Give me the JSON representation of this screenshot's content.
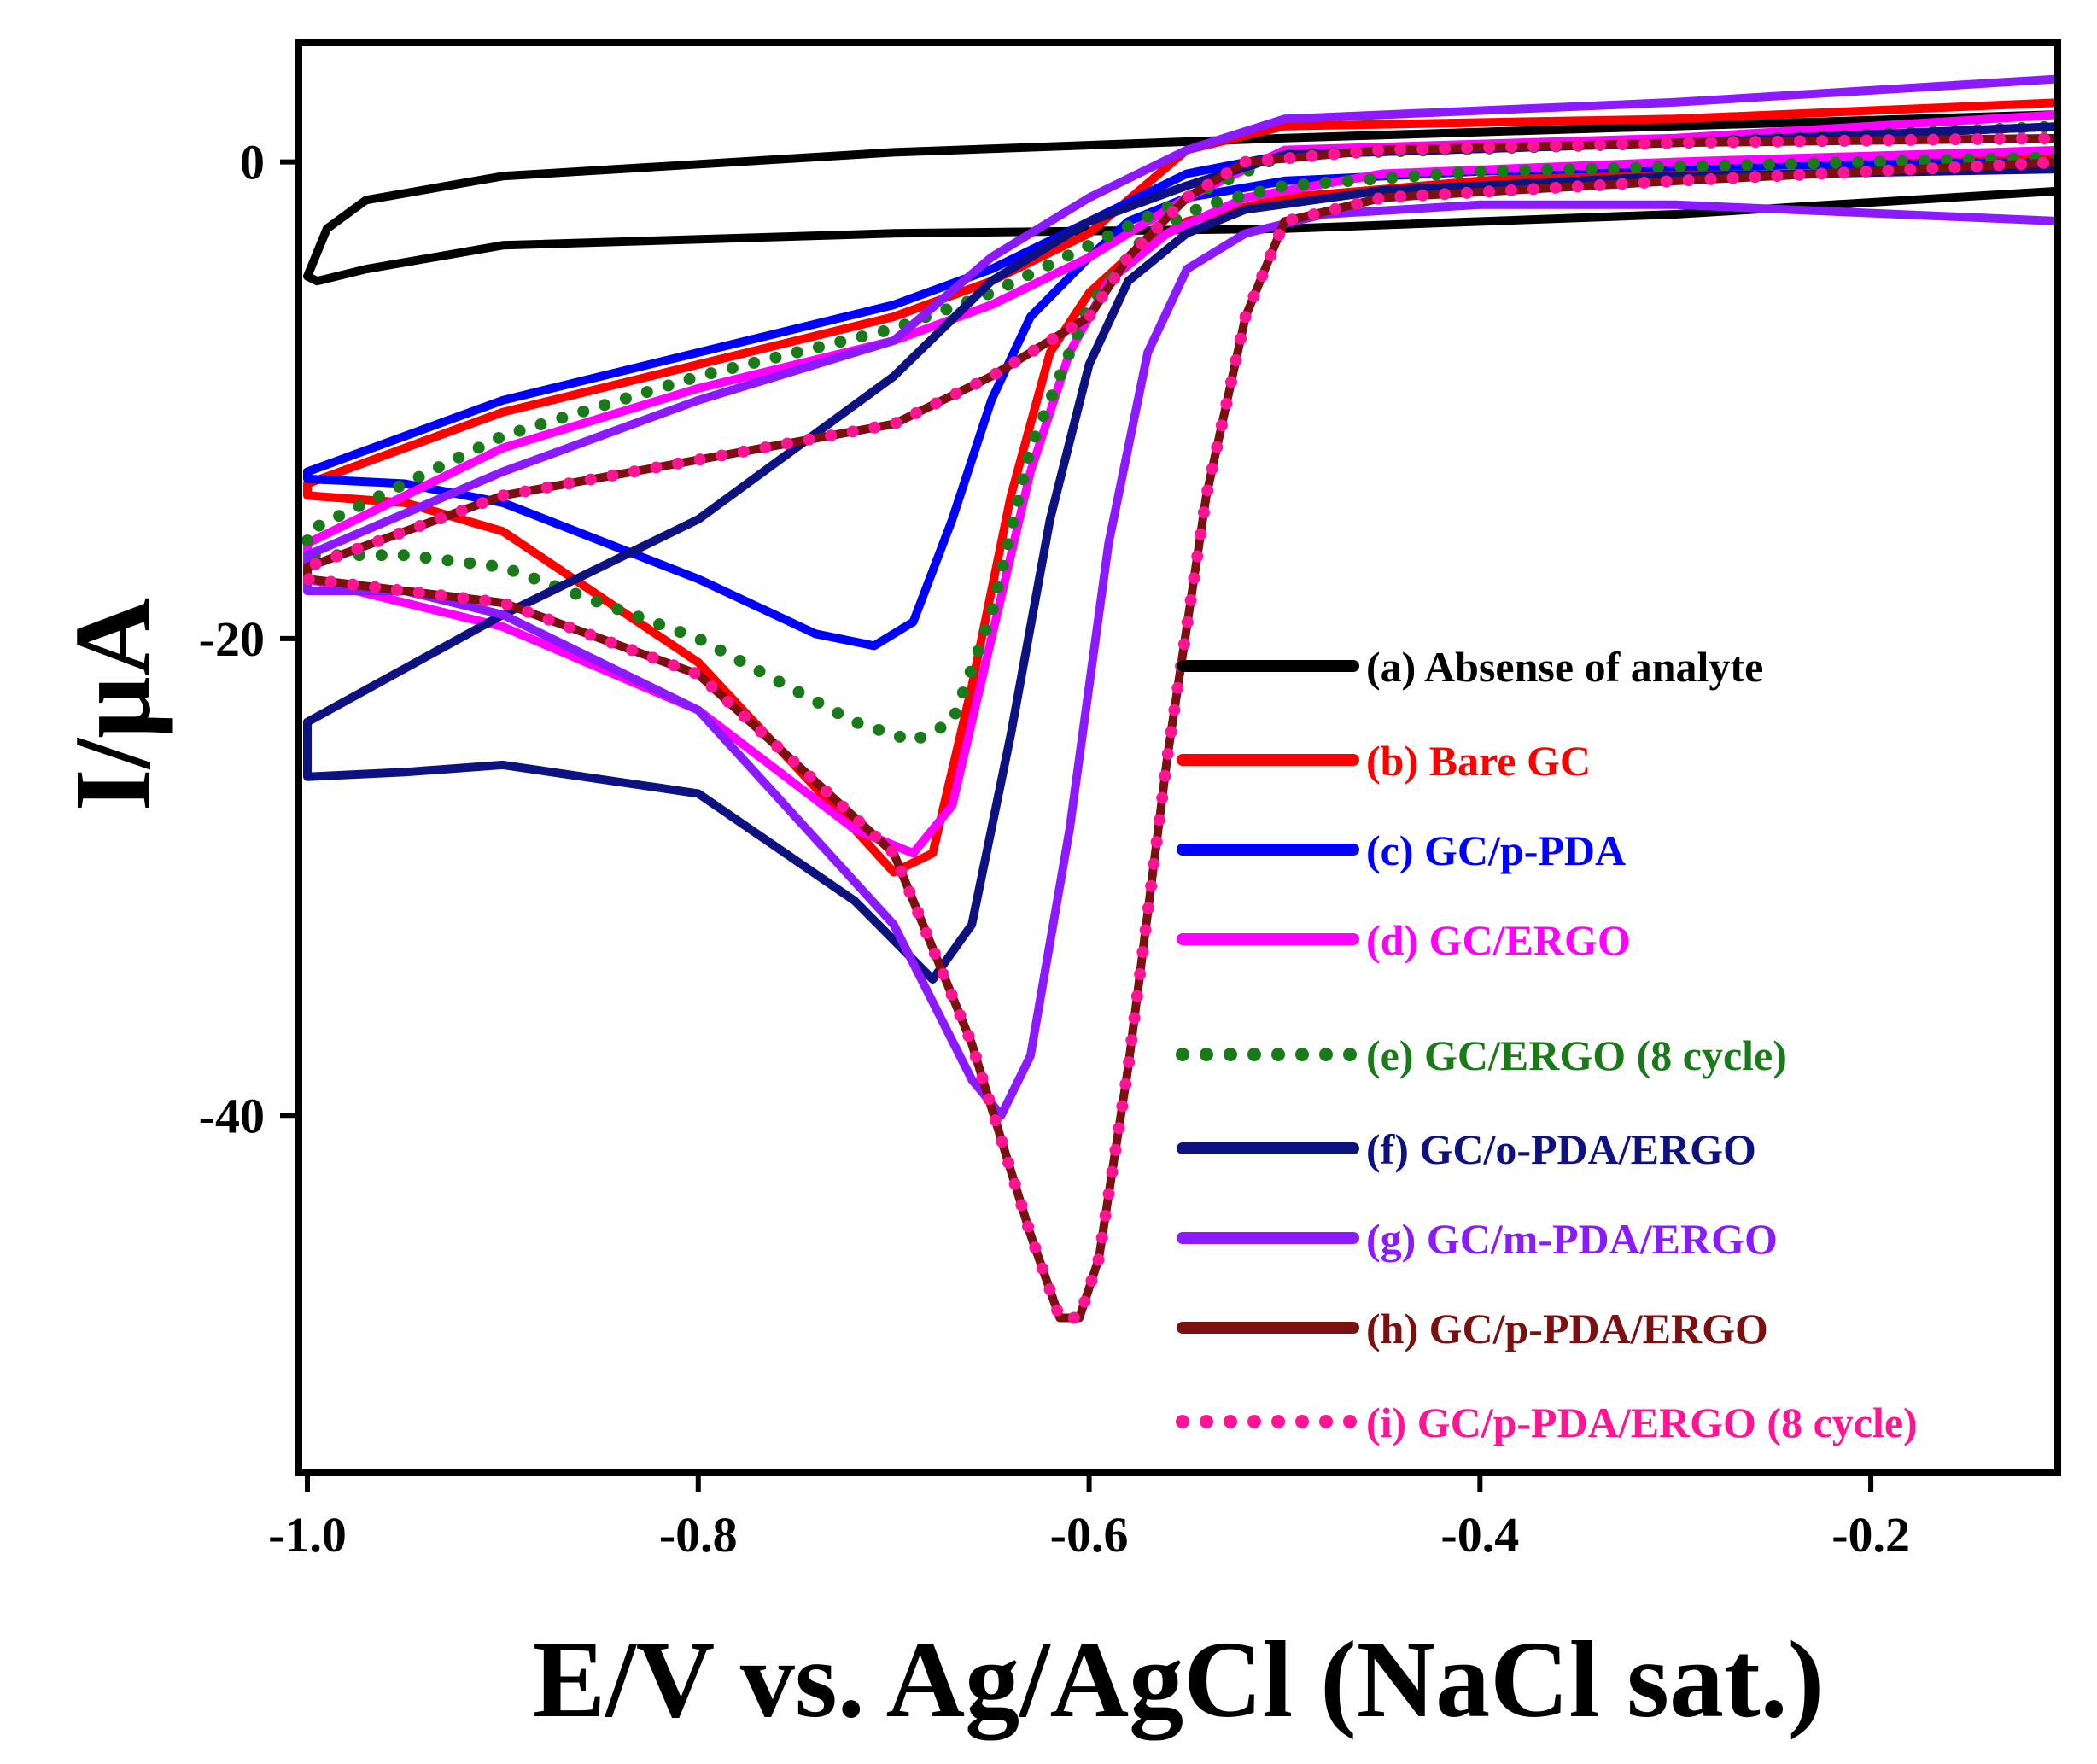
{
  "chart_data": {
    "type": "line",
    "title": "",
    "xlabel": "E/V vs. Ag/AgCl (NaCl sat.)",
    "ylabel": "I/μA",
    "xlim": [
      -1.0,
      -0.1
    ],
    "ylim": [
      -55,
      5
    ],
    "xticks": [
      -1.0,
      -0.8,
      -0.6,
      -0.4,
      -0.2
    ],
    "xtick_labels": [
      "-1.0",
      "-0.8",
      "-0.6",
      "-0.4",
      "-0.2"
    ],
    "yticks": [
      0,
      -20,
      -40
    ],
    "ytick_labels": [
      "0",
      "-20",
      "-40"
    ],
    "grid": false,
    "legend_position": "lower-right",
    "series": [
      {
        "name": "(a) Absense of analyte",
        "color": "#000000",
        "dash": "solid",
        "x": [
          -0.1,
          -0.3,
          -0.5,
          -0.7,
          -0.9,
          -0.97,
          -0.99,
          -1.0,
          -0.995,
          -0.97,
          -0.9,
          -0.7,
          -0.5,
          -0.3,
          -0.1
        ],
        "y": [
          2.0,
          1.5,
          1.0,
          0.4,
          -0.6,
          -1.6,
          -2.8,
          -4.8,
          -5.0,
          -4.5,
          -3.5,
          -3.0,
          -2.8,
          -2.2,
          -1.2
        ]
      },
      {
        "name": "(b) Bare GC",
        "color": "#ff0000",
        "dash": "solid",
        "x": [
          -0.1,
          -0.3,
          -0.5,
          -0.55,
          -0.6,
          -0.65,
          -0.7,
          -0.8,
          -0.9,
          -1.0,
          -1.0,
          -0.95,
          -0.9,
          -0.8,
          -0.72,
          -0.7,
          -0.68,
          -0.66,
          -0.64,
          -0.62,
          -0.6,
          -0.58,
          -0.55,
          -0.5,
          -0.4,
          -0.3,
          -0.1
        ],
        "y": [
          2.5,
          1.8,
          1.5,
          0.5,
          -3.0,
          -5.0,
          -6.5,
          -8.5,
          -10.5,
          -13.5,
          -14.0,
          -14.3,
          -15.5,
          -21.0,
          -28.0,
          -29.8,
          -29.0,
          -22.0,
          -14.0,
          -8.0,
          -5.5,
          -4.0,
          -2.5,
          -1.5,
          -0.8,
          -0.3,
          0.3
        ]
      },
      {
        "name": "(c) GC/p-PDA",
        "color": "#0000ff",
        "dash": "solid",
        "x": [
          -0.1,
          -0.3,
          -0.5,
          -0.55,
          -0.6,
          -0.65,
          -0.7,
          -0.8,
          -0.9,
          -1.0,
          -1.0,
          -0.95,
          -0.9,
          -0.8,
          -0.74,
          -0.71,
          -0.69,
          -0.67,
          -0.65,
          -0.63,
          -0.6,
          -0.58,
          -0.55,
          -0.5,
          -0.4,
          -0.3,
          -0.1
        ],
        "y": [
          1.5,
          0.8,
          0.3,
          -0.5,
          -2.5,
          -4.5,
          -6.0,
          -8.0,
          -10.0,
          -13.0,
          -13.3,
          -13.5,
          -14.3,
          -17.5,
          -19.8,
          -20.3,
          -19.3,
          -15.0,
          -10.0,
          -6.5,
          -4.0,
          -2.5,
          -1.5,
          -0.8,
          -0.4,
          -0.2,
          0.0
        ]
      },
      {
        "name": "(d) GC/ERGO",
        "color": "#ff00ff",
        "dash": "solid",
        "x": [
          -0.1,
          -0.3,
          -0.5,
          -0.55,
          -0.6,
          -0.65,
          -0.7,
          -0.8,
          -0.9,
          -1.0,
          -1.0,
          -0.95,
          -0.9,
          -0.8,
          -0.72,
          -0.69,
          -0.67,
          -0.65,
          -0.63,
          -0.61,
          -0.59,
          -0.56,
          -0.52,
          -0.45,
          -0.3,
          -0.1
        ],
        "y": [
          2.0,
          1.0,
          0.5,
          -1.5,
          -4.0,
          -6.0,
          -7.5,
          -9.5,
          -12.0,
          -16.0,
          -17.5,
          -18.5,
          -19.5,
          -23.0,
          -28.0,
          -29.0,
          -27.0,
          -20.0,
          -13.0,
          -8.0,
          -5.0,
          -3.0,
          -1.5,
          -0.5,
          0.0,
          0.5
        ]
      },
      {
        "name": "(e) GC/ERGO (8 cycle)",
        "color": "#1a7a1a",
        "dash": "dotted",
        "x": [
          -0.1,
          -0.3,
          -0.5,
          -0.55,
          -0.6,
          -0.65,
          -0.7,
          -0.8,
          -0.9,
          -1.0,
          -1.0,
          -0.95,
          -0.9,
          -0.8,
          -0.72,
          -0.69,
          -0.67,
          -0.65,
          -0.63,
          -0.6,
          -0.57,
          -0.54,
          -0.5,
          -0.4,
          -0.3,
          -0.1
        ],
        "y": [
          1.5,
          0.8,
          0.3,
          -1.5,
          -3.5,
          -5.5,
          -7.0,
          -9.0,
          -11.5,
          -15.5,
          -16.5,
          -16.5,
          -17.0,
          -20.0,
          -23.5,
          -24.3,
          -23.5,
          -19.0,
          -12.0,
          -6.0,
          -3.0,
          -1.8,
          -1.0,
          -0.4,
          -0.2,
          0.2
        ]
      },
      {
        "name": "(f) GC/o-PDA/ERGO",
        "color": "#0d1280",
        "dash": "solid",
        "x": [
          -0.1,
          -0.3,
          -0.5,
          -0.55,
          -0.6,
          -0.65,
          -0.7,
          -0.8,
          -0.9,
          -1.0,
          -1.0,
          -0.95,
          -0.9,
          -0.8,
          -0.72,
          -0.68,
          -0.66,
          -0.64,
          -0.62,
          -0.6,
          -0.58,
          -0.55,
          -0.52,
          -0.45,
          -0.3,
          -0.1
        ],
        "y": [
          1.5,
          0.8,
          0.3,
          -1.0,
          -2.5,
          -5.0,
          -9.0,
          -15.0,
          -19.0,
          -23.5,
          -25.8,
          -25.6,
          -25.3,
          -26.5,
          -31.0,
          -34.3,
          -32.0,
          -24.0,
          -15.0,
          -8.5,
          -5.0,
          -3.0,
          -2.0,
          -1.2,
          -0.6,
          -0.3
        ]
      },
      {
        "name": "(g) GC/m-PDA/ERGO",
        "color": "#8b1aff",
        "dash": "solid",
        "x": [
          -0.1,
          -0.3,
          -0.5,
          -0.55,
          -0.6,
          -0.65,
          -0.7,
          -0.8,
          -0.9,
          -1.0,
          -1.0,
          -0.95,
          -0.9,
          -0.8,
          -0.7,
          -0.66,
          -0.645,
          -0.63,
          -0.61,
          -0.59,
          -0.57,
          -0.55,
          -0.52,
          -0.48,
          -0.4,
          -0.3,
          -0.1
        ],
        "y": [
          3.5,
          2.5,
          1.8,
          0.5,
          -1.5,
          -4.0,
          -7.5,
          -10.0,
          -13.0,
          -16.5,
          -18.0,
          -18.0,
          -19.0,
          -23.0,
          -32.0,
          -38.5,
          -40.0,
          -37.5,
          -28.0,
          -16.0,
          -8.0,
          -4.5,
          -3.0,
          -2.2,
          -1.8,
          -1.8,
          -2.5
        ]
      },
      {
        "name": "(h) GC/p-PDA/ERGO",
        "color": "#7a1010",
        "dash": "solid",
        "x": [
          -0.1,
          -0.3,
          -0.45,
          -0.52,
          -0.55,
          -0.58,
          -0.6,
          -0.65,
          -0.7,
          -0.8,
          -0.9,
          -1.0,
          -1.0,
          -0.95,
          -0.9,
          -0.8,
          -0.7,
          -0.66,
          -0.63,
          -0.615,
          -0.605,
          -0.595,
          -0.58,
          -0.56,
          -0.54,
          -0.52,
          -0.5,
          -0.45,
          -0.3,
          -0.1
        ],
        "y": [
          1.0,
          0.8,
          0.5,
          0.0,
          -1.5,
          -4.0,
          -6.5,
          -9.0,
          -11.0,
          -12.5,
          -14.0,
          -17.0,
          -17.5,
          -18.0,
          -18.5,
          -21.5,
          -29.0,
          -37.0,
          -45.0,
          -48.5,
          -48.5,
          -46.0,
          -38.0,
          -25.0,
          -14.0,
          -6.5,
          -2.5,
          -1.5,
          -0.8,
          0.0
        ]
      },
      {
        "name": "(i) GC/p-PDA/ERGO (8 cycle)",
        "color": "#ff1493",
        "dash": "dotted",
        "x": [
          -0.1,
          -0.3,
          -0.45,
          -0.52,
          -0.55,
          -0.58,
          -0.6,
          -0.65,
          -0.7,
          -0.8,
          -0.9,
          -1.0,
          -1.0,
          -0.95,
          -0.9,
          -0.8,
          -0.7,
          -0.66,
          -0.63,
          -0.615,
          -0.605,
          -0.595,
          -0.58,
          -0.56,
          -0.54,
          -0.52,
          -0.5,
          -0.45,
          -0.3,
          -0.1
        ],
        "y": [
          1.0,
          0.8,
          0.5,
          0.0,
          -1.5,
          -4.0,
          -6.5,
          -9.0,
          -11.0,
          -12.5,
          -14.0,
          -17.0,
          -17.5,
          -18.0,
          -18.5,
          -21.5,
          -29.0,
          -37.0,
          -45.0,
          -48.5,
          -48.5,
          -46.0,
          -38.0,
          -25.0,
          -14.0,
          -6.5,
          -2.5,
          -1.5,
          -0.8,
          0.0
        ]
      }
    ]
  }
}
